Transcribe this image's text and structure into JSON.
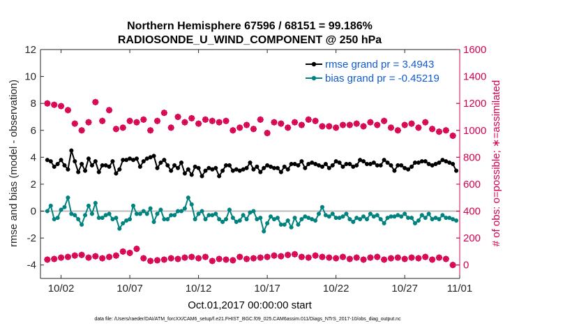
{
  "chart_data": {
    "type": "line",
    "title": "Northern Hemisphere 67596 / 68151 = 99.186%",
    "subtitle": "RADIOSONDE_U_WIND_COMPONENT @ 250 hPa",
    "xlabel": "Oct.01,2017 00:00:00 start",
    "ylabel_left": "rmse and bias (model - observation)",
    "ylabel_right": "# of obs: o=possible; ∗=assimilated",
    "footnote": "data file: /Users/raeder/DAI/ATM_forcXX/CAM6_setup/f.e21.FHIST_BGC.f09_025.CAM6assim.011/Diags_NTrS_2017-10/obs_diag_output.nc",
    "xlim": [
      0.5,
      31.0
    ],
    "ylim_left": [
      -5,
      12
    ],
    "ylim_right": [
      -100,
      1600
    ],
    "x_tick_labels": [
      {
        "x": 2,
        "label": "10/02"
      },
      {
        "x": 7,
        "label": "10/07"
      },
      {
        "x": 12,
        "label": "10/12"
      },
      {
        "x": 17,
        "label": "10/17"
      },
      {
        "x": 22,
        "label": "10/22"
      },
      {
        "x": 27,
        "label": "10/27"
      },
      {
        "x": 32,
        "label": "11/01"
      }
    ],
    "y_left_ticks": [
      -4,
      -2,
      0,
      2,
      4,
      6,
      8,
      10,
      12
    ],
    "y_right_ticks": [
      0,
      200,
      400,
      600,
      800,
      1000,
      1200,
      1400,
      1600
    ],
    "colors": {
      "rmse": "#000000",
      "bias": "#00827f",
      "obs": "#d6004f",
      "legend_text": "#0f5ad3",
      "zero_line": "#bbbbbb"
    },
    "legend": {
      "placement": "top-right",
      "entries": [
        {
          "series": "rmse",
          "label": "rmse grand pr = 3.4943"
        },
        {
          "series": "bias",
          "label": "bias grand pr = -0.45219"
        }
      ]
    },
    "series": [
      {
        "name": "rmse grand pr = 3.4943",
        "key": "rmse",
        "axis": "left",
        "x": [
          1,
          1.25,
          1.5,
          1.75,
          2,
          2.25,
          2.5,
          2.75,
          3,
          3.25,
          3.5,
          3.75,
          4,
          4.25,
          4.5,
          4.75,
          5,
          5.25,
          5.5,
          5.75,
          6,
          6.25,
          6.5,
          6.75,
          7,
          7.25,
          7.5,
          7.75,
          8,
          8.25,
          8.5,
          8.75,
          9,
          9.25,
          9.5,
          9.75,
          10,
          10.25,
          10.5,
          10.75,
          11,
          11.25,
          11.5,
          11.75,
          12,
          12.25,
          12.5,
          12.75,
          13,
          13.25,
          13.5,
          13.75,
          14,
          14.25,
          14.5,
          14.75,
          15,
          15.25,
          15.5,
          15.75,
          16,
          16.25,
          16.5,
          16.75,
          17,
          17.25,
          17.5,
          17.75,
          18,
          18.25,
          18.5,
          18.75,
          19,
          19.25,
          19.5,
          19.75,
          20,
          20.25,
          20.5,
          20.75,
          21,
          21.25,
          21.5,
          21.75,
          22,
          22.25,
          22.5,
          22.75,
          23,
          23.25,
          23.5,
          23.75,
          24,
          24.25,
          24.5,
          24.75,
          25,
          25.25,
          25.5,
          25.75,
          26,
          26.25,
          26.5,
          26.75,
          27,
          27.25,
          27.5,
          27.75,
          28,
          28.25,
          28.5,
          28.75,
          29,
          29.25,
          29.5,
          29.75,
          30,
          30.25,
          30.5,
          30.75
        ],
        "y": [
          3.8,
          3.7,
          3.3,
          3.5,
          3.8,
          3.4,
          3.1,
          4.5,
          3.7,
          2.9,
          3.5,
          3.0,
          3.9,
          3.4,
          3.7,
          2.9,
          3.4,
          3.4,
          3.3,
          3.7,
          2.8,
          3.1,
          3.8,
          3.8,
          3.9,
          3.8,
          3.9,
          3.3,
          3.7,
          3.9,
          4.0,
          4.1,
          3.2,
          3.6,
          3.8,
          3.4,
          3.0,
          3.4,
          3.2,
          3.6,
          2.8,
          3.1,
          2.7,
          3.3,
          3.2,
          2.6,
          3.0,
          3.2,
          3.1,
          3.2,
          2.6,
          3.0,
          3.4,
          3.4,
          3.0,
          3.1,
          3.0,
          3.1,
          3.2,
          3.6,
          3.1,
          3.3,
          2.9,
          3.2,
          3.4,
          3.3,
          3.2,
          3.2,
          2.9,
          3.3,
          3.1,
          3.5,
          3.5,
          3.4,
          3.7,
          3.2,
          3.5,
          3.6,
          3.5,
          3.4,
          3.3,
          3.5,
          3.2,
          3.4,
          3.7,
          3.6,
          3.3,
          3.5,
          3.5,
          3.3,
          3.4,
          3.8,
          3.7,
          3.5,
          3.5,
          3.6,
          3.4,
          3.4,
          3.8,
          3.6,
          3.4,
          3.0,
          3.4,
          3.4,
          3.2,
          3.1,
          3.3,
          3.6,
          3.6,
          3.7,
          3.7,
          3.5,
          3.4,
          3.5,
          3.6,
          3.8,
          3.7,
          3.6,
          3.5,
          3.0
        ]
      },
      {
        "name": "bias grand pr = -0.45219",
        "key": "bias",
        "axis": "left",
        "x": [
          1,
          1.25,
          1.5,
          1.75,
          2,
          2.25,
          2.5,
          2.75,
          3,
          3.25,
          3.5,
          3.75,
          4,
          4.25,
          4.5,
          4.75,
          5,
          5.25,
          5.5,
          5.75,
          6,
          6.25,
          6.5,
          6.75,
          7,
          7.25,
          7.5,
          7.75,
          8,
          8.25,
          8.5,
          8.75,
          9,
          9.25,
          9.5,
          9.75,
          10,
          10.25,
          10.5,
          10.75,
          11,
          11.25,
          11.5,
          11.75,
          12,
          12.25,
          12.5,
          12.75,
          13,
          13.25,
          13.5,
          13.75,
          14,
          14.25,
          14.5,
          14.75,
          15,
          15.25,
          15.5,
          15.75,
          16,
          16.25,
          16.5,
          16.75,
          17,
          17.25,
          17.5,
          17.75,
          18,
          18.25,
          18.5,
          18.75,
          19,
          19.25,
          19.5,
          19.75,
          20,
          20.25,
          20.5,
          20.75,
          21,
          21.25,
          21.5,
          21.75,
          22,
          22.25,
          22.5,
          22.75,
          23,
          23.25,
          23.5,
          23.75,
          24,
          24.25,
          24.5,
          24.75,
          25,
          25.25,
          25.5,
          25.75,
          26,
          26.25,
          26.5,
          26.75,
          27,
          27.25,
          27.5,
          27.75,
          28,
          28.25,
          28.5,
          28.75,
          29,
          29.25,
          29.5,
          29.75,
          30,
          30.25,
          30.5,
          30.75
        ],
        "y": [
          0.0,
          0.4,
          -0.6,
          -0.5,
          0.1,
          0.3,
          1.0,
          -0.2,
          -0.3,
          -0.6,
          -1.0,
          -0.3,
          0.4,
          -0.2,
          0.6,
          -0.5,
          -0.5,
          -0.3,
          -0.2,
          -0.6,
          -0.5,
          -1.3,
          -0.9,
          -0.7,
          -0.6,
          0.4,
          -0.2,
          -0.2,
          0.0,
          -0.2,
          0.2,
          -0.8,
          -0.2,
          0.1,
          -0.6,
          -0.6,
          -0.3,
          -0.3,
          0.0,
          0.0,
          0.2,
          1.0,
          0.5,
          -0.6,
          -0.2,
          0.0,
          -0.6,
          -0.3,
          -0.3,
          -0.2,
          -0.6,
          -0.8,
          -0.6,
          0.1,
          -0.5,
          -0.8,
          -0.7,
          -0.3,
          -0.6,
          -0.1,
          0.0,
          -0.6,
          -0.5,
          -1.5,
          -0.9,
          -0.4,
          -0.6,
          -0.5,
          -1.0,
          -1.0,
          -0.7,
          -1.2,
          -0.5,
          -1.0,
          -0.6,
          -0.4,
          -0.5,
          -0.6,
          -0.7,
          -0.2,
          0.3,
          -0.3,
          -0.4,
          -0.2,
          -0.5,
          -0.5,
          -0.4,
          -0.2,
          -0.6,
          -0.8,
          -0.5,
          -0.6,
          -0.4,
          -0.6,
          -0.2,
          -0.4,
          -0.3,
          -0.6,
          -0.9,
          -0.5,
          -0.4,
          -0.4,
          -0.3,
          -0.4,
          -0.2,
          -0.5,
          -0.5,
          -0.9,
          -0.7,
          -0.3,
          -0.5,
          -0.2,
          -0.6,
          -0.5,
          -0.6,
          -0.3,
          -0.5,
          -0.5,
          -0.6,
          -0.7
        ]
      },
      {
        "name": "possible",
        "key": "obs_possible",
        "axis": "right",
        "x": [
          1,
          1.5,
          2,
          2.5,
          3,
          3.5,
          4,
          4.5,
          5,
          5.5,
          6,
          6.5,
          7,
          7.5,
          8,
          8.5,
          9,
          9.5,
          10,
          10.5,
          11,
          11.5,
          12,
          12.5,
          13,
          13.5,
          14,
          14.5,
          15,
          15.5,
          16,
          16.5,
          17,
          17.5,
          18,
          18.5,
          19,
          19.5,
          20,
          20.5,
          21,
          21.5,
          22,
          22.5,
          23,
          23.5,
          24,
          24.5,
          25,
          25.5,
          26,
          26.5,
          27,
          27.5,
          28,
          28.5,
          29,
          29.5,
          30,
          30.5
        ],
        "y": [
          1200,
          1190,
          1180,
          1150,
          1050,
          1000,
          1060,
          1210,
          1070,
          1150,
          1010,
          1020,
          1070,
          1060,
          1080,
          1000,
          1070,
          1130,
          1020,
          1100,
          1060,
          1090,
          1050,
          1080,
          1070,
          1060,
          1070,
          1000,
          1020,
          1040,
          1010,
          1080,
          980,
          1060,
          1050,
          1020,
          1060,
          1040,
          1080,
          1070,
          1030,
          1030,
          1020,
          1040,
          1040,
          1050,
          1030,
          1060,
          1040,
          1070,
          1020,
          1000,
          1040,
          1050,
          1020,
          1060,
          1010,
          990,
          1000,
          960
        ]
      },
      {
        "name": "assimilated",
        "key": "obs_assimilated",
        "axis": "right",
        "x": [
          1,
          1.5,
          2,
          2.5,
          3,
          3.5,
          4,
          4.5,
          5,
          5.5,
          6,
          6.5,
          7,
          7.5,
          8,
          8.5,
          9,
          9.5,
          10,
          10.5,
          11,
          11.5,
          12,
          12.5,
          13,
          13.5,
          14,
          14.5,
          15,
          15.5,
          16,
          16.5,
          17,
          17.5,
          18,
          18.5,
          19,
          19.5,
          20,
          20.5,
          21,
          21.5,
          22,
          22.5,
          23,
          23.5,
          24,
          24.5,
          25,
          25.5,
          26,
          26.5,
          27,
          27.5,
          28,
          28.5,
          29,
          29.5,
          30,
          30.5
        ],
        "y": [
          40,
          45,
          55,
          60,
          70,
          75,
          55,
          65,
          50,
          60,
          70,
          100,
          90,
          120,
          50,
          30,
          35,
          40,
          50,
          45,
          55,
          60,
          50,
          60,
          30,
          45,
          40,
          35,
          60,
          45,
          50,
          55,
          60,
          70,
          65,
          75,
          80,
          60,
          55,
          70,
          60,
          55,
          50,
          60,
          45,
          55,
          40,
          55,
          60,
          40,
          50,
          55,
          45,
          55,
          50,
          60,
          40,
          55,
          45,
          0
        ]
      }
    ]
  }
}
